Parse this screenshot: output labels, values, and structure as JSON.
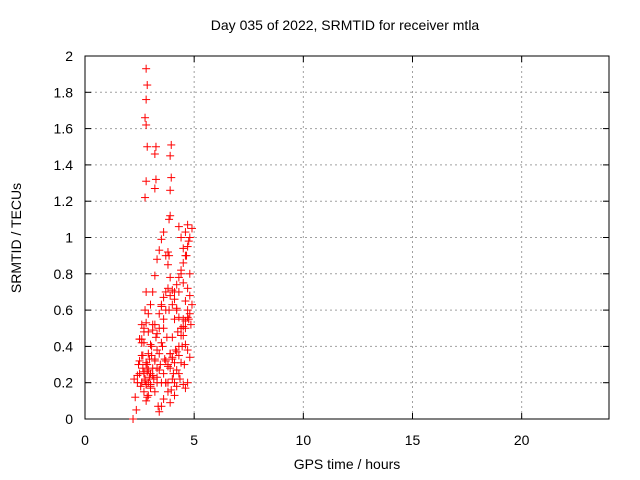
{
  "chart_data": {
    "type": "scatter",
    "title": "Day 035 of 2022, SRMTID for receiver mtla",
    "xlabel": "GPS time / hours",
    "ylabel": "SRMTID / TECUs",
    "xlim": [
      0,
      24
    ],
    "ylim": [
      0,
      2
    ],
    "xticks": [
      0,
      5,
      10,
      15,
      20
    ],
    "yticks": [
      0,
      0.2,
      0.4,
      0.6,
      0.8,
      1,
      1.2,
      1.4,
      1.6,
      1.8,
      2
    ],
    "grid": true,
    "marker": "plus",
    "color": "#ff0000",
    "series": [
      {
        "name": "SRMTID",
        "x": [
          2.2,
          2.25,
          2.3,
          2.35,
          2.4,
          2.45,
          2.5,
          2.5,
          2.55,
          2.6,
          2.6,
          2.65,
          2.7,
          2.7,
          2.75,
          2.75,
          2.8,
          2.8,
          2.8,
          2.85,
          2.85,
          2.9,
          2.9,
          2.95,
          3.0,
          3.0,
          3.05,
          3.1,
          3.1,
          3.15,
          3.2,
          3.2,
          3.25,
          3.3,
          3.3,
          3.35,
          3.4,
          3.4,
          3.45,
          3.5,
          3.5,
          3.55,
          3.6,
          3.6,
          3.65,
          3.7,
          3.7,
          3.75,
          3.8,
          3.8,
          3.85,
          3.9,
          3.9,
          3.95,
          4.0,
          4.0,
          4.05,
          4.1,
          4.1,
          4.15,
          4.2,
          4.2,
          4.25,
          4.3,
          4.3,
          4.35,
          4.4,
          4.4,
          4.45,
          4.5,
          4.5,
          4.55,
          4.6,
          4.6,
          4.65,
          4.7,
          4.7,
          4.75,
          4.8,
          4.8,
          4.85,
          4.9,
          2.6,
          2.65,
          2.7,
          2.75,
          2.8,
          2.85,
          2.9,
          2.95,
          3.0,
          3.05,
          3.1,
          3.2,
          3.3,
          3.4,
          3.5,
          3.6,
          3.7,
          3.8,
          3.9,
          4.0,
          4.1,
          4.2,
          4.3,
          4.4,
          4.5,
          4.6,
          4.7,
          4.8,
          2.7,
          2.8,
          2.9,
          3.0,
          3.3,
          3.4,
          3.5,
          3.6,
          3.7,
          3.8,
          3.9,
          4.0,
          4.1,
          4.2,
          4.3,
          4.4,
          4.5,
          4.6,
          4.7,
          4.8,
          2.5,
          2.6,
          2.7,
          2.8,
          2.9,
          3.0,
          3.1,
          3.2,
          3.3,
          3.4,
          3.5,
          3.6,
          3.7,
          3.8,
          3.9,
          4.0,
          4.1,
          4.2,
          4.3,
          4.4,
          4.5,
          4.6,
          4.7,
          4.8,
          4.9,
          2.4,
          2.5,
          2.6,
          2.7,
          2.8,
          2.9,
          3.0,
          3.1,
          3.2,
          3.3,
          3.4,
          3.5,
          3.6,
          3.7,
          3.8,
          3.9,
          4.0,
          4.1,
          4.2,
          4.3,
          4.4,
          4.5,
          4.6,
          4.7,
          2.75,
          2.8,
          2.85,
          2.8,
          2.75,
          2.8,
          2.85,
          2.8,
          3.2,
          3.25,
          3.2,
          3.25,
          3.9,
          3.95,
          3.9,
          3.95,
          3.85,
          3.9,
          3.8,
          3.85,
          4.3,
          4.4,
          4.5,
          4.6,
          4.7,
          4.75
        ],
        "y": [
          0.0,
          0.22,
          0.12,
          0.05,
          0.2,
          0.3,
          0.44,
          0.25,
          0.18,
          0.35,
          0.52,
          0.28,
          0.15,
          0.42,
          0.22,
          0.6,
          0.3,
          0.19,
          0.7,
          0.26,
          0.12,
          0.2,
          0.48,
          0.33,
          0.25,
          0.17,
          0.4,
          0.28,
          0.52,
          0.22,
          0.33,
          0.15,
          0.45,
          0.2,
          0.38,
          0.07,
          0.27,
          0.5,
          0.3,
          0.2,
          0.62,
          0.4,
          0.25,
          0.55,
          0.33,
          0.2,
          0.7,
          0.45,
          0.3,
          0.2,
          0.6,
          0.36,
          0.28,
          0.16,
          0.45,
          0.33,
          0.25,
          0.55,
          0.2,
          0.38,
          0.6,
          0.27,
          0.48,
          0.35,
          0.7,
          0.22,
          0.5,
          0.8,
          0.4,
          0.55,
          0.75,
          0.3,
          0.65,
          0.5,
          0.9,
          0.6,
          0.72,
          0.55,
          0.8,
          0.68,
          0.52,
          0.63,
          0.42,
          0.35,
          0.25,
          0.21,
          0.19,
          0.3,
          0.27,
          0.23,
          0.19,
          0.35,
          0.24,
          0.32,
          0.28,
          0.36,
          0.42,
          0.5,
          0.32,
          0.29,
          0.36,
          0.34,
          0.31,
          0.37,
          0.4,
          0.46,
          0.51,
          0.54,
          0.56,
          0.58,
          0.5,
          0.1,
          0.13,
          0.18,
          0.23,
          0.04,
          0.07,
          0.11,
          0.2,
          0.15,
          0.09,
          0.22,
          0.13,
          0.18,
          0.25,
          0.31,
          0.19,
          0.17,
          0.2,
          0.34,
          0.44,
          0.2,
          0.26,
          0.31,
          0.36,
          0.41,
          0.49,
          0.52,
          0.47,
          0.58,
          0.63,
          0.67,
          0.6,
          0.72,
          0.68,
          0.63,
          0.7,
          0.74,
          0.78,
          0.82,
          0.86,
          0.9,
          0.95,
          1.0,
          1.05,
          0.24,
          0.32,
          0.44,
          0.48,
          0.53,
          0.58,
          0.63,
          0.7,
          0.79,
          0.88,
          0.93,
          0.99,
          1.03,
          0.9,
          0.85,
          0.78,
          0.71,
          0.66,
          0.61,
          0.56,
          0.5,
          0.46,
          0.41,
          0.38,
          1.22,
          1.31,
          1.5,
          1.62,
          1.66,
          1.76,
          1.84,
          1.93,
          1.27,
          1.32,
          1.46,
          1.5,
          1.26,
          1.33,
          1.45,
          1.51,
          1.1,
          1.12,
          0.92,
          0.9,
          1.06,
          1.0,
          0.94,
          1.03,
          1.07,
          0.98
        ]
      }
    ]
  }
}
